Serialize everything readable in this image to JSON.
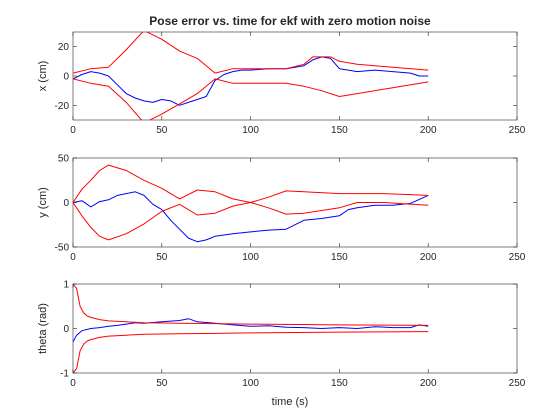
{
  "figure_title": "Pose error vs. time for ekf with zero motion noise",
  "colors": {
    "error": "#0000ff",
    "bound": "#ff0000",
    "axes": "#262626"
  },
  "chart_data": [
    {
      "type": "line",
      "title": "Pose error vs. time for ekf with zero motion noise",
      "xlabel": "",
      "ylabel": "x (cm)",
      "xlim": [
        0,
        250
      ],
      "ylim": [
        -30,
        30
      ],
      "xticks": [
        "0",
        "50",
        "100",
        "150",
        "200",
        "250"
      ],
      "yticks": [
        "-20",
        "0",
        "20"
      ],
      "series": [
        {
          "color": "#0000ff",
          "x": [
            0,
            5,
            10,
            15,
            20,
            25,
            30,
            35,
            40,
            45,
            50,
            55,
            60,
            65,
            70,
            75,
            80,
            85,
            90,
            95,
            100,
            110,
            120,
            130,
            135,
            140,
            145,
            150,
            155,
            160,
            170,
            180,
            190,
            195,
            200
          ],
          "y": [
            -2,
            1,
            3,
            2,
            0,
            -6,
            -12,
            -15,
            -17,
            -18,
            -16,
            -17,
            -20,
            -18,
            -16,
            -14,
            -3,
            1,
            3,
            4,
            4,
            5,
            5,
            7,
            11,
            13,
            12,
            5,
            4,
            3,
            4,
            3,
            2,
            0,
            0
          ]
        },
        {
          "color": "#ff0000",
          "x": [
            0,
            10,
            20,
            30,
            40,
            50,
            60,
            70,
            80,
            90,
            100,
            120,
            130,
            135,
            145,
            150,
            160,
            180,
            200
          ],
          "y": [
            2,
            5,
            6,
            18,
            31,
            25,
            17,
            12,
            2,
            5,
            5,
            5,
            8,
            13,
            13,
            10,
            8,
            6,
            4
          ]
        },
        {
          "color": "#ff0000",
          "x": [
            0,
            10,
            20,
            30,
            40,
            50,
            60,
            70,
            80,
            90,
            100,
            120,
            130,
            140,
            150,
            160,
            180,
            200
          ],
          "y": [
            -2,
            -5,
            -7,
            -18,
            -32,
            -26,
            -19,
            -12,
            -2,
            -5,
            -5,
            -5,
            -7,
            -10,
            -14,
            -12,
            -8,
            -4
          ]
        }
      ]
    },
    {
      "type": "line",
      "title": "",
      "xlabel": "",
      "ylabel": "y (cm)",
      "xlim": [
        0,
        250
      ],
      "ylim": [
        -50,
        50
      ],
      "xticks": [
        "0",
        "50",
        "100",
        "150",
        "200",
        "250"
      ],
      "yticks": [
        "-50",
        "0",
        "50"
      ],
      "series": [
        {
          "color": "#0000ff",
          "x": [
            0,
            5,
            10,
            15,
            20,
            25,
            30,
            35,
            40,
            45,
            50,
            55,
            60,
            65,
            70,
            75,
            80,
            90,
            100,
            110,
            120,
            130,
            140,
            150,
            155,
            160,
            170,
            180,
            190,
            200
          ],
          "y": [
            0,
            2,
            -5,
            1,
            3,
            8,
            10,
            12,
            8,
            -2,
            -8,
            -20,
            -30,
            -40,
            -44,
            -42,
            -38,
            -35,
            -33,
            -31,
            -30,
            -20,
            -18,
            -15,
            -8,
            -6,
            -3,
            -3,
            -1,
            8
          ]
        },
        {
          "color": "#ff0000",
          "x": [
            0,
            5,
            10,
            15,
            20,
            30,
            40,
            50,
            60,
            70,
            80,
            90,
            100,
            110,
            120,
            130,
            150,
            160,
            175,
            200
          ],
          "y": [
            0,
            15,
            25,
            36,
            42,
            36,
            25,
            16,
            4,
            14,
            12,
            4,
            0,
            6,
            13,
            12,
            10,
            10,
            10,
            8
          ]
        },
        {
          "color": "#ff0000",
          "x": [
            0,
            5,
            10,
            15,
            20,
            30,
            40,
            50,
            60,
            70,
            80,
            90,
            100,
            110,
            120,
            130,
            150,
            160,
            175,
            200
          ],
          "y": [
            0,
            -15,
            -28,
            -38,
            -42,
            -35,
            -24,
            -10,
            -2,
            -14,
            -12,
            -4,
            0,
            -6,
            -13,
            -12,
            -6,
            0,
            0,
            -3
          ]
        }
      ]
    },
    {
      "type": "line",
      "title": "",
      "xlabel": "time (s)",
      "ylabel": "theta (rad)",
      "xlim": [
        0,
        250
      ],
      "ylim": [
        -1,
        1
      ],
      "xticks": [
        "0",
        "50",
        "100",
        "150",
        "200",
        "250"
      ],
      "yticks": [
        "-1",
        "0",
        "1"
      ],
      "series": [
        {
          "color": "#0000ff",
          "x": [
            0,
            2,
            5,
            10,
            15,
            20,
            25,
            30,
            35,
            40,
            50,
            60,
            65,
            70,
            80,
            90,
            100,
            110,
            120,
            130,
            140,
            150,
            160,
            170,
            180,
            190,
            195,
            200
          ],
          "y": [
            -0.3,
            -0.15,
            -0.05,
            0.0,
            0.02,
            0.05,
            0.07,
            0.1,
            0.13,
            0.12,
            0.15,
            0.18,
            0.22,
            0.15,
            0.12,
            0.08,
            0.05,
            0.06,
            0.03,
            0.02,
            0.0,
            0.02,
            0.0,
            0.04,
            0.02,
            0.02,
            0.08,
            0.05
          ]
        },
        {
          "color": "#ff0000",
          "x": [
            0,
            2,
            4,
            6,
            8,
            10,
            15,
            20,
            30,
            40,
            60,
            80,
            100,
            150,
            200
          ],
          "y": [
            1,
            0.9,
            0.5,
            0.35,
            0.28,
            0.25,
            0.2,
            0.17,
            0.15,
            0.13,
            0.12,
            0.11,
            0.1,
            0.08,
            0.07
          ]
        },
        {
          "color": "#ff0000",
          "x": [
            0,
            2,
            4,
            6,
            8,
            10,
            15,
            20,
            30,
            40,
            60,
            80,
            100,
            150,
            200
          ],
          "y": [
            -1,
            -0.9,
            -0.5,
            -0.35,
            -0.28,
            -0.25,
            -0.2,
            -0.17,
            -0.15,
            -0.13,
            -0.12,
            -0.11,
            -0.1,
            -0.08,
            -0.07
          ]
        }
      ]
    }
  ]
}
